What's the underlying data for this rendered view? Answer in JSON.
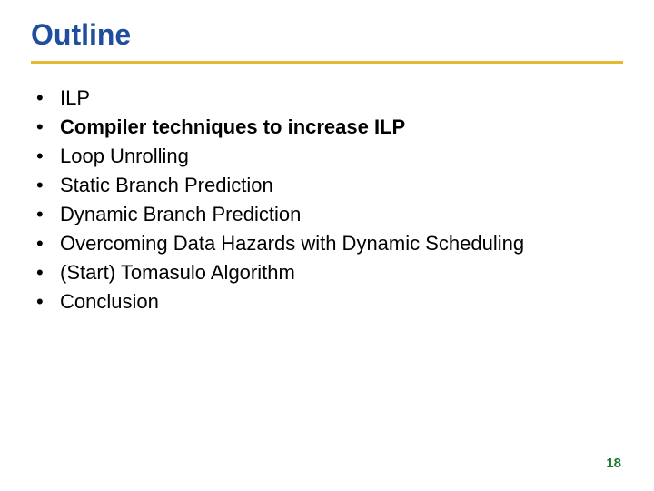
{
  "title": "Outline",
  "title_color": "#1f4e9c",
  "title_fontsize": 32,
  "rule_color": "#e8b730",
  "rule_height": 3,
  "bullets": [
    {
      "text": "ILP",
      "bold": false
    },
    {
      "text": "Compiler techniques to increase ILP",
      "bold": true
    },
    {
      "text": "Loop Unrolling",
      "bold": false
    },
    {
      "text": "Static Branch Prediction",
      "bold": false
    },
    {
      "text": "Dynamic Branch Prediction",
      "bold": false
    },
    {
      "text": "Overcoming Data Hazards with Dynamic Scheduling",
      "bold": false
    },
    {
      "text": "(Start) Tomasulo Algorithm",
      "bold": false
    },
    {
      "text": "Conclusion",
      "bold": false
    }
  ],
  "bullet_marker": "•",
  "bullet_fontsize": 22,
  "bullet_color": "#000000",
  "page_number": "18",
  "page_number_color": "#1a7a2e",
  "background_color": "#ffffff",
  "slide_width": 720,
  "slide_height": 540
}
